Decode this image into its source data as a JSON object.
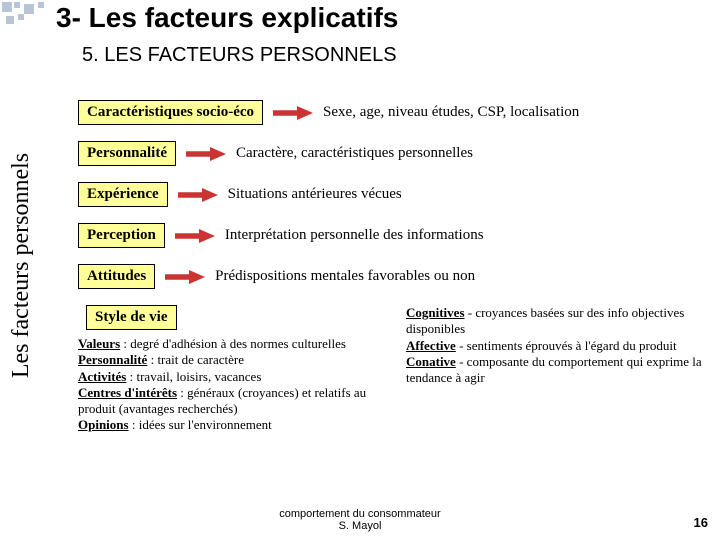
{
  "decor": {
    "square_color": "#b8c5d6"
  },
  "title": {
    "text": "3- Les facteurs explicatifs",
    "fontsize": 28
  },
  "subtitle": {
    "text": "5. LES FACTEURS PERSONNELS",
    "fontsize": 20
  },
  "sidelabel": {
    "text": "Les facteurs personnels",
    "fontsize": 24
  },
  "box_style": {
    "bg": "#ffff99",
    "border": "#000000",
    "fontsize": 15
  },
  "desc_style": {
    "fontsize": 15
  },
  "arrow": {
    "color": "#cc3333",
    "width": 40,
    "height": 14
  },
  "rows": [
    {
      "label": "Caractéristiques socio-éco",
      "desc": "Sexe, age, niveau études, CSP, localisation"
    },
    {
      "label": "Personnalité",
      "desc": "Caractère, caractéristiques personnelles"
    },
    {
      "label": "Expérience",
      "desc": "Situations antérieures vécues"
    },
    {
      "label": "Perception",
      "desc": "Interprétation personnelle des informations"
    },
    {
      "label": "Attitudes",
      "desc": "Prédispositions mentales favorables ou non"
    }
  ],
  "style_de_vie": {
    "label": "Style de vie",
    "defs": [
      {
        "term": "Valeurs",
        "text": " : degré d'adhésion à des normes culturelles"
      },
      {
        "term": "Personnalité",
        "text": " : trait de caractère"
      },
      {
        "term": "Activités",
        "text": " : travail, loisirs, vacances"
      },
      {
        "term": "Centres d'intérêts",
        "text": " : généraux (croyances) et relatifs au produit (avantages recherchés)"
      },
      {
        "term": "Opinions",
        "text": " : idées sur l'environnement"
      }
    ],
    "fontsize": 13
  },
  "components": {
    "items": [
      {
        "term": "Cognitives",
        "text": " - croyances basées sur des info objectives disponibles"
      },
      {
        "term": "Affective",
        "text": " - sentiments éprouvés à l'égard du produit"
      },
      {
        "term": "Conative",
        "text": " - composante du comportement qui exprime la tendance à agir"
      }
    ],
    "fontsize": 13
  },
  "footer": {
    "line1": "comportement du consommateur",
    "line2": "S. Mayol",
    "fontsize": 11
  },
  "page": {
    "num": "16",
    "fontsize": 13
  }
}
